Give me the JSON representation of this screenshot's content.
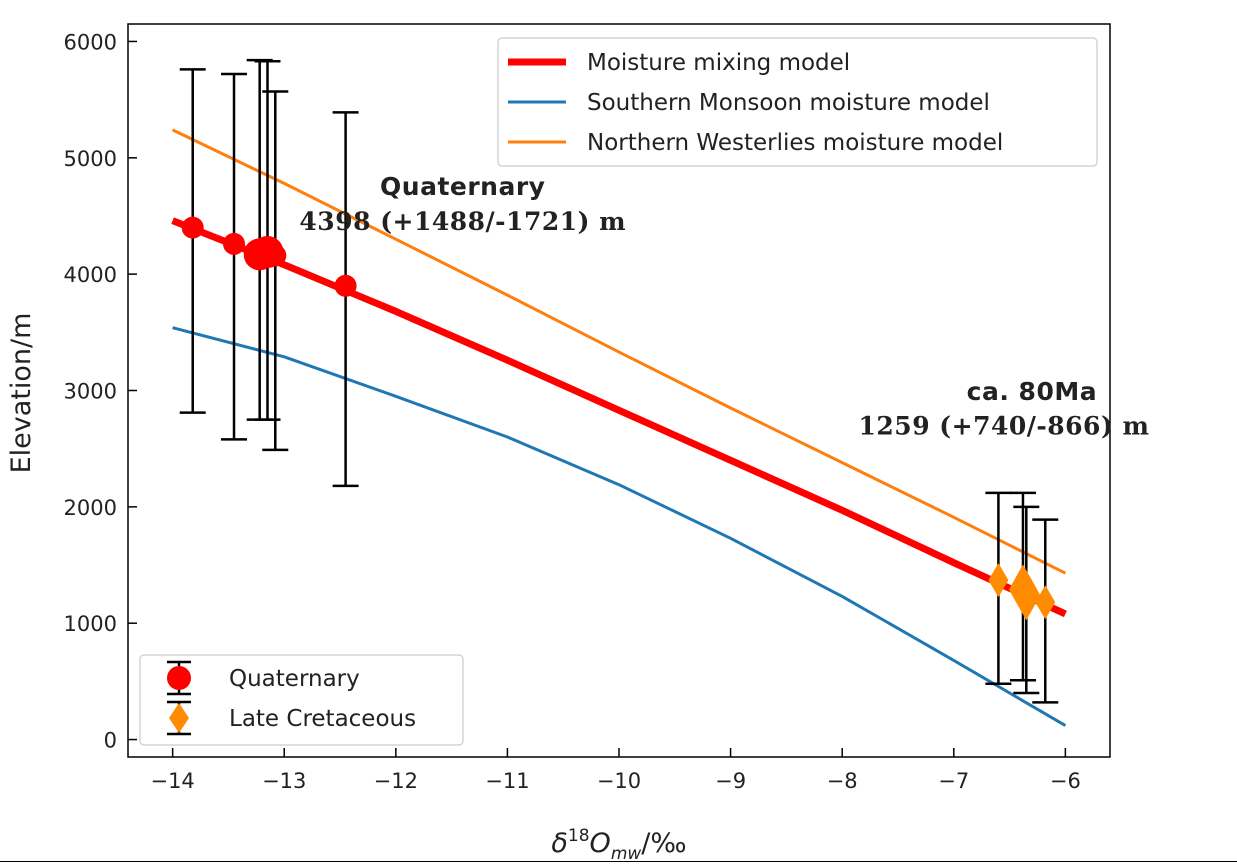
{
  "chart_data": {
    "type": "line",
    "xlabel_parts": {
      "base": "δ",
      "sup": "18",
      "mid": "O",
      "sub": "mw",
      "tail": "/‰"
    },
    "ylabel": "Elevation/m",
    "xlim": [
      -14.4,
      -5.6
    ],
    "ylim": [
      -150,
      6150
    ],
    "xticks": [
      -14,
      -13,
      -12,
      -11,
      -10,
      -9,
      -8,
      -7,
      -6
    ],
    "yticks": [
      0,
      1000,
      2000,
      3000,
      4000,
      5000,
      6000
    ],
    "series": [
      {
        "name": "Moisture mixing model",
        "color": "#ff0000",
        "x": [
          -14,
          -13,
          -12,
          -11,
          -10,
          -9,
          -8,
          -7,
          -6
        ],
        "y": [
          4460,
          4080,
          3680,
          3260,
          2830,
          2400,
          1970,
          1520,
          1080
        ]
      },
      {
        "name": "Southern Monsoon moisture model",
        "color": "#1f77b4",
        "x": [
          -14,
          -13,
          -12,
          -11,
          -10,
          -9,
          -8,
          -7,
          -6
        ],
        "y": [
          3540,
          3290,
          2950,
          2600,
          2190,
          1730,
          1230,
          680,
          120
        ]
      },
      {
        "name": "Northern Westerlies moisture model",
        "color": "#ff7f0e",
        "x": [
          -14,
          -13,
          -12,
          -11,
          -10,
          -9,
          -8,
          -7,
          -6
        ],
        "y": [
          5240,
          4780,
          4300,
          3820,
          3330,
          2850,
          2380,
          1910,
          1430
        ]
      }
    ],
    "points": [
      {
        "group": "Quaternary",
        "x": -13.82,
        "y": 4400,
        "err_high": 5760,
        "err_low": 2810,
        "size": "small"
      },
      {
        "group": "Quaternary",
        "x": -13.45,
        "y": 4260,
        "err_high": 5720,
        "err_low": 2580,
        "size": "small"
      },
      {
        "group": "Quaternary",
        "x": -13.22,
        "y": 4170,
        "err_high": 5840,
        "err_low": 2750,
        "size": "large"
      },
      {
        "group": "Quaternary",
        "x": -13.15,
        "y": 4190,
        "err_high": 5830,
        "err_low": 2750,
        "size": "large"
      },
      {
        "group": "Quaternary",
        "x": -13.08,
        "y": 4160,
        "err_high": 5570,
        "err_low": 2490,
        "size": "small"
      },
      {
        "group": "Quaternary",
        "x": -12.45,
        "y": 3900,
        "err_high": 5390,
        "err_low": 2180,
        "size": "small"
      },
      {
        "group": "Late Cretaceous",
        "x": -6.6,
        "y": 1370,
        "err_high": 2120,
        "err_low": 480,
        "size": "small"
      },
      {
        "group": "Late Cretaceous",
        "x": -6.38,
        "y": 1290,
        "err_high": 2120,
        "err_low": 510,
        "size": "large"
      },
      {
        "group": "Late Cretaceous",
        "x": -6.35,
        "y": 1240,
        "err_high": 2000,
        "err_low": 400,
        "size": "large"
      },
      {
        "group": "Late Cretaceous",
        "x": -6.18,
        "y": 1180,
        "err_high": 1890,
        "err_low": 320,
        "size": "small"
      }
    ],
    "point_groups": [
      {
        "name": "Quaternary",
        "marker": "circle",
        "color": "#ff0000"
      },
      {
        "name": "Late Cretaceous",
        "marker": "diamond",
        "color": "#ff8c00"
      }
    ],
    "annotations": [
      {
        "id": "quat-title",
        "text": "Quaternary",
        "x": -11.4,
        "y": 4680,
        "style": "sans-bold"
      },
      {
        "id": "quat-elev",
        "text": "4398 (+1488/-1721) m",
        "x": -11.4,
        "y": 4380,
        "style": "serif-bold"
      },
      {
        "id": "cret-title",
        "text": "ca. 80Ma",
        "x": -6.3,
        "y": 2920,
        "style": "sans-bold"
      },
      {
        "id": "cret-elev",
        "text": "1259 (+740/-866) m",
        "x": -6.55,
        "y": 2620,
        "style": "serif-bold"
      }
    ],
    "legend_lines_position": "top-right",
    "legend_points_position": "lower-left"
  }
}
